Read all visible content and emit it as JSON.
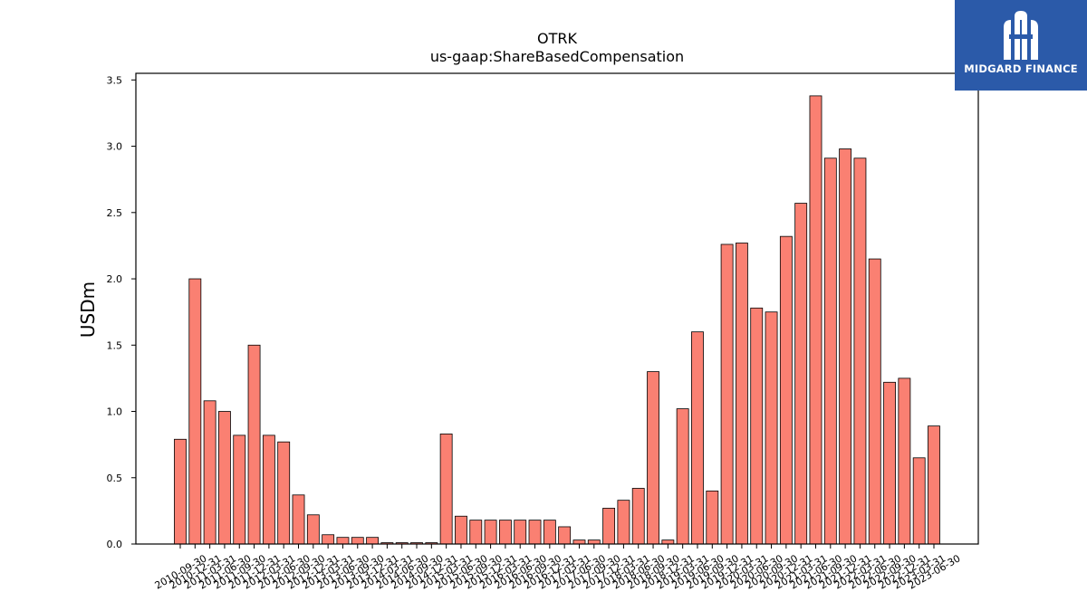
{
  "logo": {
    "text": "MIDGARD FINANCE"
  },
  "chart_data": {
    "type": "bar",
    "title": "OTRK",
    "subtitle": "us-gaap:ShareBasedCompensation",
    "xlabel": "",
    "ylabel": "USDm",
    "ylim": [
      0,
      3.55
    ],
    "yticks": [
      0.0,
      0.5,
      1.0,
      1.5,
      2.0,
      2.5,
      3.0,
      3.5
    ],
    "ytick_labels": [
      "0.0",
      "0.5",
      "1.0",
      "1.5",
      "2.0",
      "2.5",
      "3.0",
      "3.5"
    ],
    "grid": false,
    "bar_color": "#fa8072",
    "edge_color": "#000000",
    "categories": [
      "2010-09-30",
      "2010-12-31",
      "2011-03-31",
      "2011-06-30",
      "2011-09-30",
      "2011-12-31",
      "2012-03-31",
      "2012-06-30",
      "2012-09-30",
      "2012-12-31",
      "2013-03-31",
      "2013-06-30",
      "2013-09-30",
      "2013-12-31",
      "2014-03-31",
      "2014-06-30",
      "2014-09-30",
      "2014-12-31",
      "2015-03-31",
      "2015-06-30",
      "2015-09-30",
      "2015-12-31",
      "2016-03-31",
      "2016-06-30",
      "2016-09-30",
      "2016-12-31",
      "2017-03-31",
      "2017-06-30",
      "2017-09-30",
      "2017-12-31",
      "2018-03-31",
      "2018-06-30",
      "2018-09-30",
      "2018-12-31",
      "2019-03-31",
      "2019-06-30",
      "2019-09-30",
      "2019-12-31",
      "2020-03-31",
      "2020-06-30",
      "2020-09-30",
      "2020-12-31",
      "2021-03-31",
      "2021-06-30",
      "2021-09-30",
      "2021-12-31",
      "2022-03-31",
      "2022-06-30",
      "2022-09-30",
      "2022-12-31",
      "2023-03-31",
      "2023-06-30"
    ],
    "values": [
      0.79,
      2.0,
      1.08,
      1.0,
      0.82,
      1.5,
      0.82,
      0.77,
      0.37,
      0.22,
      0.07,
      0.05,
      0.05,
      0.05,
      0.01,
      0.01,
      0.01,
      0.01,
      0.83,
      0.21,
      0.18,
      0.18,
      0.18,
      0.18,
      0.18,
      0.18,
      0.13,
      0.03,
      0.03,
      0.27,
      0.33,
      0.42,
      1.3,
      0.03,
      1.02,
      1.6,
      0.4,
      2.26,
      2.27,
      1.78,
      1.75,
      2.32,
      2.57,
      3.38,
      2.91,
      2.98,
      2.91,
      2.15,
      1.22,
      1.25,
      0.65,
      0.89
    ]
  }
}
